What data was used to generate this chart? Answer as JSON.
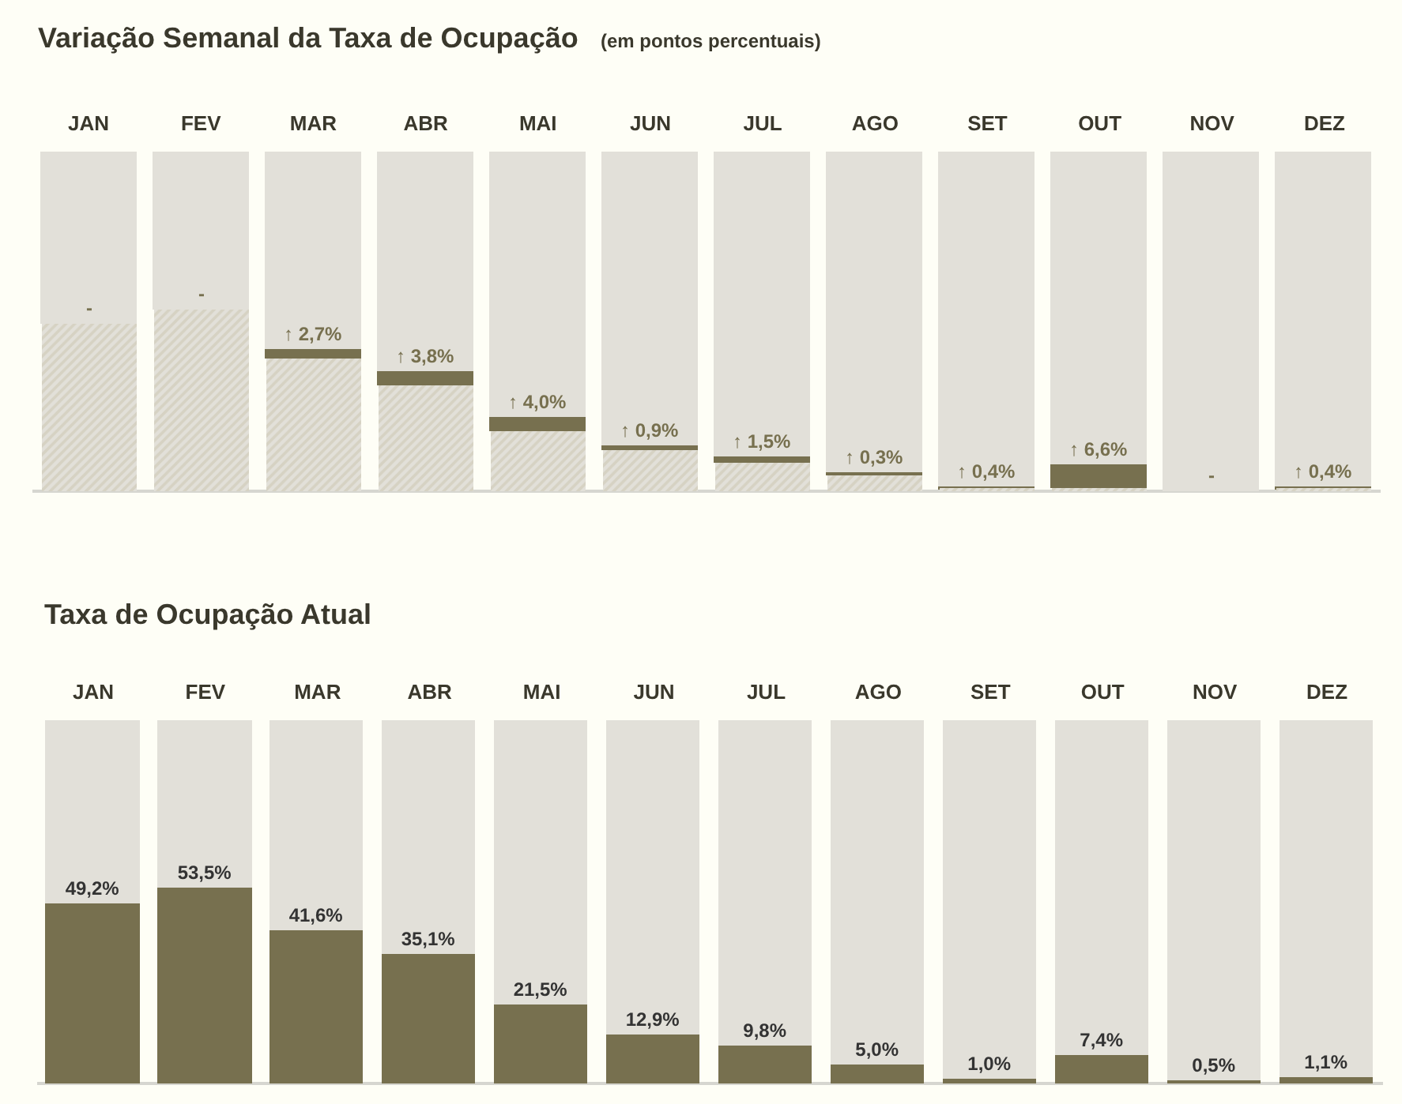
{
  "chart_data": [
    {
      "type": "bar",
      "title": "Variação Semanal da Taxa de Ocupação",
      "subtitle": "(em pontos percentuais)",
      "categories": [
        "JAN",
        "FEV",
        "MAR",
        "ABR",
        "MAI",
        "JUN",
        "JUL",
        "AGO",
        "SET",
        "OUT",
        "NOV",
        "DEZ"
      ],
      "stacked": true,
      "ylim": [
        0,
        100
      ],
      "tick_labels": "x",
      "series": [
        {
          "color": "#c9c3ad",
          "values": [
            49.2,
            53.5,
            38.9,
            31.3,
            17.5,
            12.0,
            8.3,
            4.7,
            0.6,
            0.8,
            null,
            0.7
          ]
        },
        {
          "color": "#77704f",
          "values": [
            null,
            null,
            2.7,
            3.8,
            4.0,
            0.9,
            1.5,
            0.3,
            0.4,
            6.6,
            null,
            0.4
          ],
          "value_labels": [
            "-",
            "-",
            "↑ 2,7%",
            "↑ 3,8%",
            "↑ 4,0%",
            "↑ 0,9%",
            "↑ 1,5%",
            "↑ 0,3%",
            "↑ 0,4%",
            "↑ 6,6%",
            "-",
            "↑ 0,4%"
          ]
        },
        {
          "color": "#e2e0d9",
          "values": [
            50.8,
            46.5,
            58.4,
            64.9,
            78.5,
            87.1,
            90.2,
            95.0,
            99.0,
            92.6,
            100,
            98.9
          ]
        }
      ]
    },
    {
      "type": "bar",
      "title": "Taxa de Ocupação Atual",
      "categories": [
        "JAN",
        "FEV",
        "MAR",
        "ABR",
        "MAI",
        "JUN",
        "JUL",
        "AGO",
        "SET",
        "OUT",
        "NOV",
        "DEZ"
      ],
      "stacked": true,
      "ylim": [
        0,
        100
      ],
      "tick_labels": "x",
      "series": [
        {
          "color": "#77704f",
          "values": [
            49.2,
            53.5,
            41.6,
            35.1,
            21.5,
            12.9,
            9.8,
            5.0,
            1.0,
            7.4,
            0.5,
            1.1
          ],
          "value_labels": [
            "49,2%",
            "53,5%",
            "41,6%",
            "35,1%",
            "21,5%",
            "12,9%",
            "9,8%",
            "5,0%",
            "1,0%",
            "7,4%",
            "0,5%",
            "1,1%"
          ]
        },
        {
          "color": "#e2e0d9",
          "values": [
            50.8,
            46.5,
            58.4,
            64.9,
            78.5,
            87.1,
            90.2,
            95.0,
            99.0,
            92.6,
            99.5,
            98.9
          ]
        }
      ]
    }
  ]
}
